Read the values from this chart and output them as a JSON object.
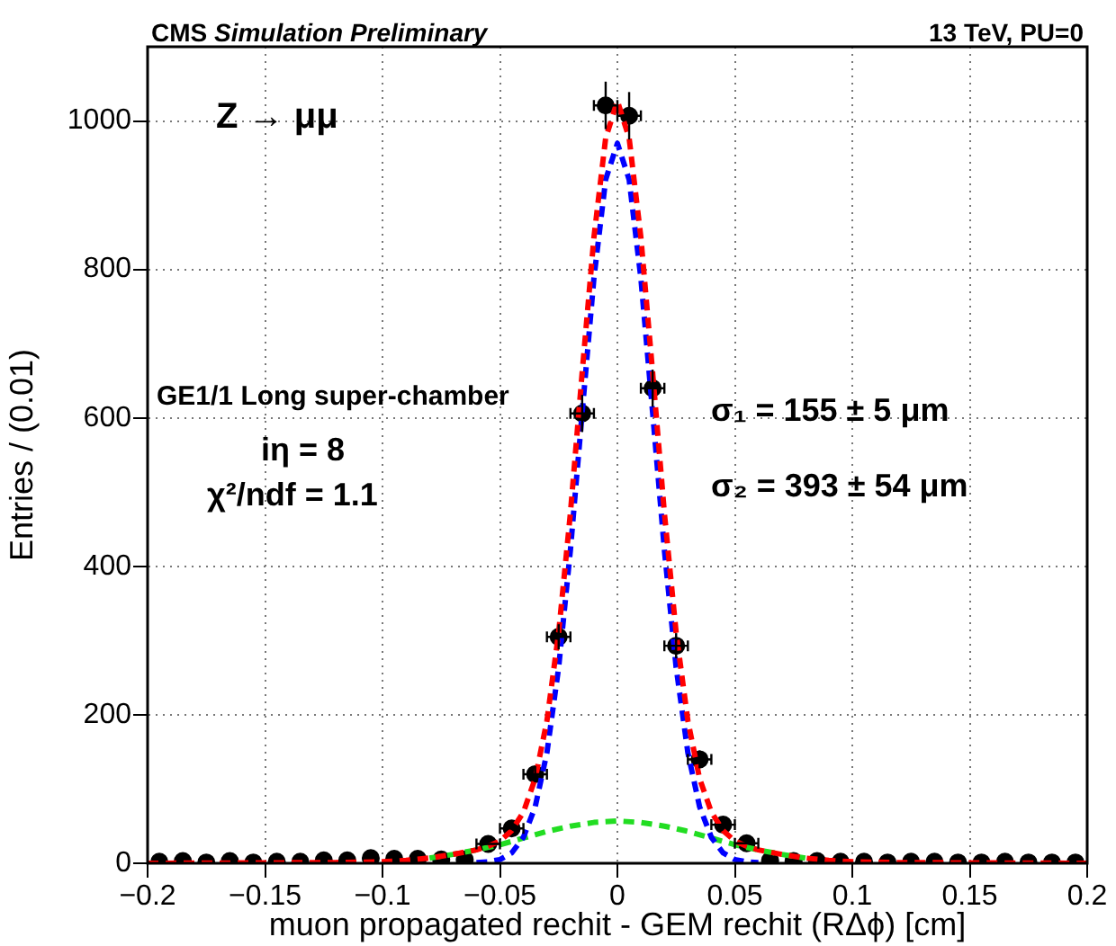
{
  "chart_data": {
    "type": "scatter",
    "title": "CMS Simulation Preliminary",
    "subtitle": "13 TeV, PU=0",
    "xlabel": "muon propagated rechit - GEM rechit (RΔϕ) [cm]",
    "ylabel": "Entries / (0.01)",
    "xlim": [
      -0.2,
      0.2
    ],
    "ylim": [
      0,
      1100
    ],
    "xticks": [
      {
        "value": -0.2,
        "label": "−0.2"
      },
      {
        "value": -0.15,
        "label": "−0.15"
      },
      {
        "value": -0.1,
        "label": "−0.1"
      },
      {
        "value": -0.05,
        "label": "−0.05"
      },
      0,
      0.05,
      0.1,
      0.15,
      0.2
    ],
    "yticks": [
      0,
      200,
      400,
      600,
      800,
      1000
    ],
    "grid": true,
    "legend": false,
    "annotations": [
      "Z → μμ",
      "GE1/1 Long super-chamber",
      "iη = 8",
      "χ²/ndf =  1.1",
      "σ₁ = 155 ± 5 μm",
      "σ₂ = 393 ± 54 μm"
    ],
    "series": [
      {
        "type": "line",
        "color": "#22dd22",
        "line_style": "dashed",
        "marker": "none",
        "x": [
          -0.08,
          -0.07,
          -0.06,
          -0.05,
          -0.04,
          -0.03,
          -0.02,
          -0.01,
          0,
          0.01,
          0.02,
          0.03,
          0.04,
          0.05,
          0.06,
          0.07,
          0.08
        ],
        "values": [
          7,
          12,
          18,
          25,
          34,
          43,
          50,
          55,
          57,
          55,
          50,
          43,
          34,
          25,
          18,
          12,
          7
        ]
      },
      {
        "type": "line",
        "color": "#0000ff",
        "line_style": "dashed",
        "marker": "none",
        "x": [
          -0.06,
          -0.055,
          -0.05,
          -0.045,
          -0.04,
          -0.035,
          -0.03,
          -0.025,
          -0.02,
          -0.015,
          -0.01,
          -0.005,
          0,
          0.005,
          0.01,
          0.015,
          0.02,
          0.025,
          0.03,
          0.035,
          0.04,
          0.045,
          0.05,
          0.055,
          0.06
        ],
        "values": [
          1,
          2,
          5,
          14,
          35,
          76,
          149,
          264,
          422,
          607,
          788,
          921,
          970,
          921,
          788,
          607,
          422,
          264,
          149,
          76,
          35,
          14,
          5,
          2,
          1
        ]
      },
      {
        "type": "line",
        "color": "#ff0000",
        "line_style": "dashed",
        "marker": "none",
        "x": [
          -0.2,
          -0.12,
          -0.1,
          -0.09,
          -0.08,
          -0.07,
          -0.06,
          -0.055,
          -0.05,
          -0.045,
          -0.04,
          -0.035,
          -0.03,
          -0.025,
          -0.02,
          -0.015,
          -0.01,
          -0.005,
          0,
          0.005,
          0.01,
          0.015,
          0.02,
          0.025,
          0.03,
          0.035,
          0.04,
          0.045,
          0.05,
          0.055,
          0.06,
          0.07,
          0.08,
          0.09,
          0.1,
          0.12,
          0.2
        ],
        "values": [
          0,
          1,
          2,
          4,
          7,
          12,
          18,
          23,
          30,
          44,
          69,
          114,
          192,
          311,
          472,
          661,
          843,
          977,
          1027,
          977,
          843,
          661,
          472,
          311,
          192,
          114,
          69,
          44,
          30,
          23,
          18,
          12,
          7,
          4,
          2,
          1,
          0
        ]
      },
      {
        "type": "scatter",
        "color": "#000000",
        "marker": "circle",
        "x": [
          -0.195,
          -0.185,
          -0.175,
          -0.165,
          -0.155,
          -0.145,
          -0.135,
          -0.125,
          -0.115,
          -0.105,
          -0.095,
          -0.085,
          -0.075,
          -0.065,
          -0.055,
          -0.045,
          -0.035,
          -0.025,
          -0.015,
          -0.005,
          0.005,
          0.015,
          0.025,
          0.035,
          0.045,
          0.055,
          0.065,
          0.075,
          0.085,
          0.095,
          0.105,
          0.115,
          0.125,
          0.135,
          0.145,
          0.155,
          0.165,
          0.175,
          0.185,
          0.195
        ],
        "values": [
          2,
          3,
          1,
          3,
          1,
          2,
          2,
          4,
          4,
          7,
          6,
          6,
          5,
          5,
          26,
          47,
          120,
          305,
          606,
          1021,
          1007,
          640,
          293,
          140,
          52,
          27,
          4,
          3,
          3,
          2,
          2,
          1,
          2,
          2,
          1,
          1,
          2,
          1,
          1,
          1
        ],
        "errors": [
          null,
          null,
          null,
          null,
          null,
          null,
          null,
          null,
          null,
          null,
          null,
          null,
          null,
          null,
          null,
          null,
          11,
          17,
          25,
          32,
          32,
          25,
          17,
          12,
          null,
          null,
          null,
          null,
          null,
          null,
          null,
          null,
          null,
          null,
          null,
          null,
          null,
          null,
          null,
          null
        ],
        "xerrors": [
          null,
          null,
          null,
          null,
          null,
          null,
          null,
          null,
          null,
          null,
          null,
          null,
          null,
          null,
          0.005,
          0.005,
          0.005,
          0.005,
          0.005,
          0.005,
          0.005,
          0.005,
          0.005,
          0.005,
          0.005,
          0.005,
          null,
          null,
          null,
          null,
          null,
          null,
          null,
          null,
          null,
          null,
          null,
          null,
          null,
          null
        ]
      }
    ]
  }
}
